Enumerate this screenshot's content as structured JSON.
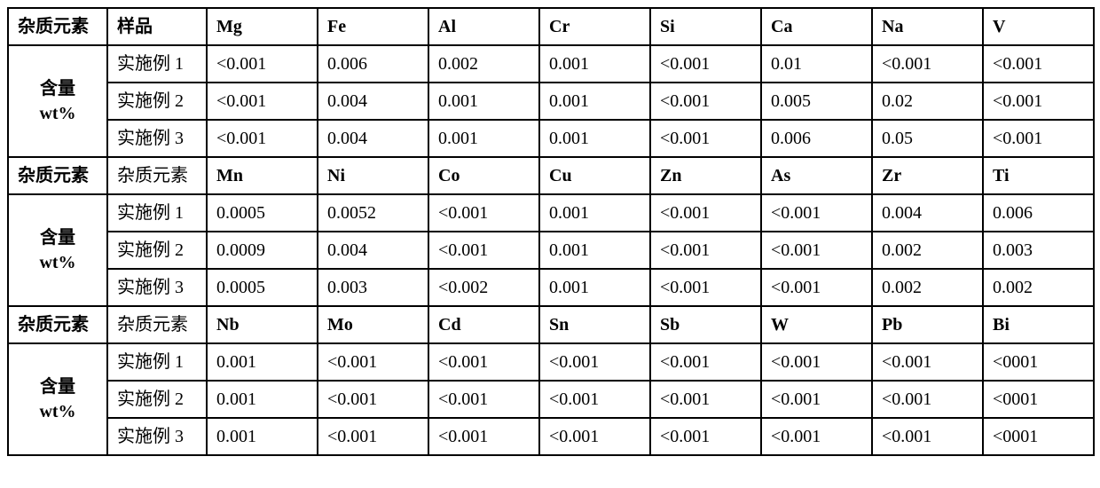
{
  "table": {
    "sections": [
      {
        "header": {
          "row_label": "杂质元素",
          "sample_label": "样品",
          "elements": [
            "Mg",
            "Fe",
            "Al",
            "Cr",
            "Si",
            "Ca",
            "Na",
            "V"
          ]
        },
        "group_label_line1": "含量",
        "group_label_line2": "wt%",
        "rows": [
          {
            "sample": "实施例 1",
            "values": [
              "<0.001",
              "0.006",
              "0.002",
              "0.001",
              "<0.001",
              "0.01",
              "<0.001",
              "<0.001"
            ]
          },
          {
            "sample": "实施例 2",
            "values": [
              "<0.001",
              "0.004",
              "0.001",
              "0.001",
              "<0.001",
              "0.005",
              "0.02",
              "<0.001"
            ]
          },
          {
            "sample": "实施例 3",
            "values": [
              "<0.001",
              "0.004",
              "0.001",
              "0.001",
              "<0.001",
              "0.006",
              "0.05",
              "<0.001"
            ]
          }
        ]
      },
      {
        "header": {
          "row_label": "杂质元素",
          "sample_label": "杂质元素",
          "elements": [
            "Mn",
            "Ni",
            "Co",
            "Cu",
            "Zn",
            "As",
            "Zr",
            "Ti"
          ]
        },
        "group_label_line1": "含量",
        "group_label_line2": "wt%",
        "rows": [
          {
            "sample": "实施例 1",
            "values": [
              "0.0005",
              "0.0052",
              "<0.001",
              "0.001",
              "<0.001",
              "<0.001",
              "0.004",
              "0.006"
            ]
          },
          {
            "sample": "实施例 2",
            "values": [
              "0.0009",
              "0.004",
              "<0.001",
              "0.001",
              "<0.001",
              "<0.001",
              "0.002",
              "0.003"
            ]
          },
          {
            "sample": "实施例 3",
            "values": [
              "0.0005",
              "0.003",
              "<0.002",
              "0.001",
              "<0.001",
              "<0.001",
              "0.002",
              "0.002"
            ]
          }
        ]
      },
      {
        "header": {
          "row_label": "杂质元素",
          "sample_label": "杂质元素",
          "elements": [
            "Nb",
            "Mo",
            "Cd",
            "Sn",
            "Sb",
            "W",
            "Pb",
            "Bi"
          ]
        },
        "group_label_line1": "含量",
        "group_label_line2": "wt%",
        "rows": [
          {
            "sample": "实施例 1",
            "values": [
              "0.001",
              "<0.001",
              "<0.001",
              "<0.001",
              "<0.001",
              "<0.001",
              "<0.001",
              "<0001"
            ]
          },
          {
            "sample": "实施例 2",
            "values": [
              "0.001",
              "<0.001",
              "<0.001",
              "<0.001",
              "<0.001",
              "<0.001",
              "<0.001",
              "<0001"
            ]
          },
          {
            "sample": "实施例 3",
            "values": [
              "0.001",
              "<0.001",
              "<0.001",
              "<0.001",
              "<0.001",
              "<0.001",
              "<0.001",
              "<0001"
            ]
          }
        ]
      }
    ]
  }
}
